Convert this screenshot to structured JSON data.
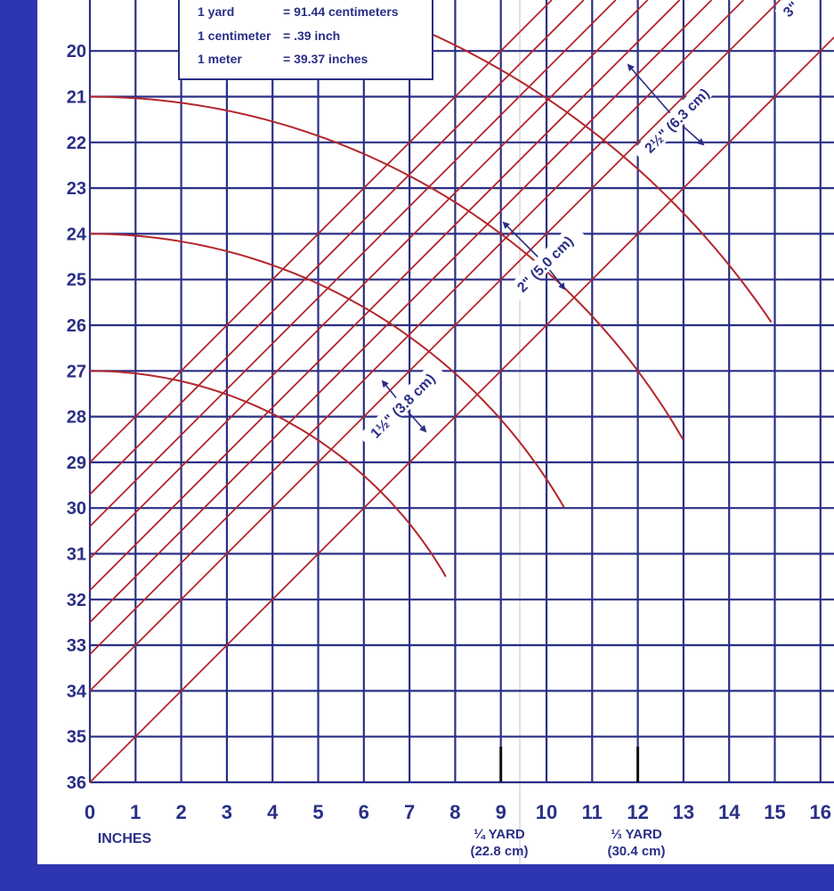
{
  "colors": {
    "border": "#2e35b0",
    "grid": "#2a2f86",
    "curve": "#b3262c",
    "text": "#2a2f86",
    "paper": "#ffffff"
  },
  "conversions": [
    {
      "term": "1 yard",
      "value": "= 91.44 centimeters"
    },
    {
      "term": "1 centimeter",
      "value": "= .39 inch"
    },
    {
      "term": "1 meter",
      "value": "= 39.37 inches"
    }
  ],
  "y_axis_labels": [
    "20",
    "21",
    "22",
    "23",
    "24",
    "25",
    "26",
    "27",
    "28",
    "29",
    "30",
    "31",
    "32",
    "33",
    "34",
    "35",
    "36"
  ],
  "x_axis_labels": [
    "0",
    "1",
    "2",
    "3",
    "4",
    "5",
    "6",
    "7",
    "8",
    "9",
    "10",
    "11",
    "12",
    "13",
    "14",
    "15",
    "16"
  ],
  "x_axis_unit": "INCHES",
  "yard_marks": [
    {
      "line1": "¼ YARD",
      "line2": "(22.8 cm)"
    },
    {
      "line1": "⅓ YARD",
      "line2": "(30.4 cm)"
    }
  ],
  "bias_labels": [
    {
      "text": "1½\" (3.8 cm)"
    },
    {
      "text": "2\" (5.0 cm)"
    },
    {
      "text": "2½\" (6.3 cm)"
    },
    {
      "text": "3\""
    }
  ]
}
